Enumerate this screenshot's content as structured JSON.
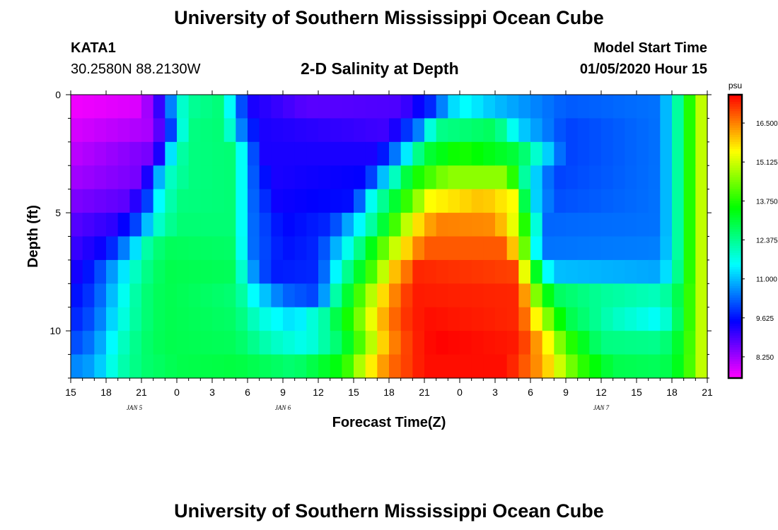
{
  "page": {
    "title_top": "University of Southern Mississippi Ocean Cube",
    "title_bottom": "University of Southern Mississippi Ocean Cube",
    "station_id": "KATA1",
    "station_coords": "30.2580N 88.2130W",
    "model_start_label": "Model Start Time",
    "model_start_value": "01/05/2020 Hour 15"
  },
  "chart_data": {
    "type": "heatmap",
    "title": "2-D Salinity at Depth",
    "xlabel": "Forecast Time(Z)",
    "ylabel": "Depth (ft)",
    "x_tick_labels": [
      "15",
      "18",
      "21",
      "0",
      "3",
      "6",
      "9",
      "12",
      "15",
      "18",
      "21",
      "0",
      "3",
      "6",
      "9",
      "12",
      "15",
      "18",
      "21"
    ],
    "x_day_labels": [
      {
        "label": "JAN 5",
        "hour": 9
      },
      {
        "label": "JAN 6",
        "hour": 30
      },
      {
        "label": "JAN 7",
        "hour": 75
      }
    ],
    "xlim_hours": [
      0,
      54
    ],
    "y_tick_labels": [
      {
        "label": "0",
        "depth": 0
      },
      {
        "label": "5",
        "depth": 5
      },
      {
        "label": "10",
        "depth": 10
      }
    ],
    "ylim_depth": [
      0,
      12
    ],
    "colorbar_unit": "psu",
    "colorbar_ticks": [
      "16.500",
      "15.125",
      "13.750",
      "12.375",
      "11.000",
      "9.625",
      "8.250"
    ],
    "colorbar_range": [
      7.5,
      17.5
    ],
    "depth_layers": [
      0.5,
      1.5,
      2.5,
      3.5,
      4.5,
      5.5,
      6.5,
      7.5,
      8.5,
      9.5,
      10.5,
      11.5
    ],
    "layer_profiles": [
      [
        [
          0,
          7.6
        ],
        [
          6,
          7.8
        ],
        [
          8,
          9.5
        ],
        [
          9,
          11.5
        ],
        [
          10,
          12.3
        ],
        [
          13,
          12.6
        ],
        [
          14,
          10.5
        ],
        [
          15.5,
          9.3
        ],
        [
          20,
          8.8
        ],
        [
          28,
          8.9
        ],
        [
          30.5,
          9.8
        ],
        [
          33,
          11.6
        ],
        [
          36,
          11.0
        ],
        [
          42,
          10.2
        ],
        [
          50,
          10.4
        ],
        [
          51,
          11.5
        ],
        [
          52,
          13.0
        ],
        [
          53,
          14.5
        ],
        [
          54,
          15.5
        ]
      ],
      [
        [
          0,
          7.8
        ],
        [
          7,
          8.2
        ],
        [
          8.5,
          10.0
        ],
        [
          9.5,
          11.8
        ],
        [
          10.5,
          12.5
        ],
        [
          13,
          12.6
        ],
        [
          14.5,
          10.5
        ],
        [
          16,
          9.3
        ],
        [
          27,
          9.0
        ],
        [
          29.5,
          10.5
        ],
        [
          31,
          12.4
        ],
        [
          36,
          12.8
        ],
        [
          38,
          11.2
        ],
        [
          42,
          10.0
        ],
        [
          50,
          10.4
        ],
        [
          51,
          11.5
        ],
        [
          52,
          13.0
        ],
        [
          53,
          14.5
        ],
        [
          54,
          15.5
        ]
      ],
      [
        [
          0,
          8.0
        ],
        [
          7,
          8.6
        ],
        [
          8,
          10.0
        ],
        [
          8.7,
          11.8
        ],
        [
          10,
          12.5
        ],
        [
          14,
          12.6
        ],
        [
          15,
          10.5
        ],
        [
          16.5,
          9.3
        ],
        [
          26,
          9.3
        ],
        [
          28,
          10.8
        ],
        [
          30,
          13.0
        ],
        [
          33,
          13.7
        ],
        [
          38,
          13.0
        ],
        [
          40,
          11.5
        ],
        [
          42,
          10.0
        ],
        [
          50,
          10.4
        ],
        [
          51,
          11.5
        ],
        [
          52,
          13.0
        ],
        [
          53,
          14.5
        ],
        [
          54,
          15.5
        ]
      ],
      [
        [
          0,
          8.2
        ],
        [
          6,
          8.6
        ],
        [
          7,
          10.0
        ],
        [
          8,
          11.8
        ],
        [
          10,
          12.5
        ],
        [
          14,
          12.6
        ],
        [
          15,
          10.5
        ],
        [
          17,
          9.3
        ],
        [
          25,
          9.5
        ],
        [
          27,
          11.5
        ],
        [
          29,
          13.5
        ],
        [
          32,
          14.6
        ],
        [
          37,
          14.6
        ],
        [
          38,
          13.0
        ],
        [
          39,
          11.5
        ],
        [
          41,
          10.0
        ],
        [
          50,
          10.4
        ],
        [
          51,
          11.5
        ],
        [
          52,
          13.0
        ],
        [
          53,
          14.5
        ],
        [
          54,
          15.5
        ]
      ],
      [
        [
          0,
          8.5
        ],
        [
          5,
          8.8
        ],
        [
          6.5,
          10.0
        ],
        [
          7.5,
          11.5
        ],
        [
          9,
          12.5
        ],
        [
          14,
          12.6
        ],
        [
          15,
          10.5
        ],
        [
          17.5,
          9.4
        ],
        [
          24,
          9.6
        ],
        [
          25.5,
          11.6
        ],
        [
          28,
          13.5
        ],
        [
          30.5,
          15.5
        ],
        [
          35,
          16.0
        ],
        [
          37.5,
          15.5
        ],
        [
          38.3,
          13.5
        ],
        [
          39,
          11.5
        ],
        [
          41,
          10.1
        ],
        [
          50,
          10.4
        ],
        [
          51,
          11.5
        ],
        [
          52,
          13.0
        ],
        [
          53,
          14.5
        ],
        [
          54,
          15.5
        ]
      ],
      [
        [
          0,
          8.8
        ],
        [
          4,
          9.2
        ],
        [
          6,
          10.3
        ],
        [
          7,
          11.7
        ],
        [
          9,
          12.6
        ],
        [
          14,
          12.6
        ],
        [
          15,
          10.5
        ],
        [
          18,
          9.5
        ],
        [
          22,
          9.8
        ],
        [
          25,
          11.8
        ],
        [
          27,
          13.5
        ],
        [
          29,
          15.5
        ],
        [
          31,
          16.5
        ],
        [
          36,
          16.4
        ],
        [
          38,
          15.0
        ],
        [
          39,
          12.5
        ],
        [
          40.5,
          10.3
        ],
        [
          50,
          10.4
        ],
        [
          51,
          11.5
        ],
        [
          52,
          13.0
        ],
        [
          53,
          14.5
        ],
        [
          54,
          15.5
        ]
      ],
      [
        [
          0,
          9.0
        ],
        [
          3,
          9.5
        ],
        [
          5,
          10.8
        ],
        [
          6.5,
          12.2
        ],
        [
          8,
          12.8
        ],
        [
          14,
          12.7
        ],
        [
          15,
          10.5
        ],
        [
          18,
          9.6
        ],
        [
          21,
          9.8
        ],
        [
          24,
          12.0
        ],
        [
          26,
          13.8
        ],
        [
          28,
          15.5
        ],
        [
          30,
          16.8
        ],
        [
          37,
          16.8
        ],
        [
          38.7,
          14.0
        ],
        [
          39.5,
          11.5
        ],
        [
          40.5,
          10.4
        ],
        [
          50,
          10.5
        ],
        [
          51,
          11.5
        ],
        [
          52,
          13.0
        ],
        [
          53,
          14.5
        ],
        [
          54,
          15.5
        ]
      ],
      [
        [
          0,
          9.2
        ],
        [
          2,
          9.8
        ],
        [
          4,
          11.0
        ],
        [
          6,
          12.3
        ],
        [
          8,
          12.9
        ],
        [
          14,
          12.8
        ],
        [
          15,
          11.0
        ],
        [
          17,
          9.7
        ],
        [
          21,
          9.8
        ],
        [
          23,
          12.0
        ],
        [
          25.5,
          14.0
        ],
        [
          27.5,
          16.0
        ],
        [
          29.5,
          17.2
        ],
        [
          37.5,
          17.0
        ],
        [
          39,
          14.5
        ],
        [
          40,
          12.0
        ],
        [
          41,
          11.0
        ],
        [
          50,
          10.8
        ],
        [
          51,
          11.7
        ],
        [
          52,
          13.1
        ],
        [
          53,
          14.5
        ],
        [
          54,
          15.5
        ]
      ],
      [
        [
          0,
          9.5
        ],
        [
          2,
          10.0
        ],
        [
          4,
          11.3
        ],
        [
          6,
          12.5
        ],
        [
          8,
          12.9
        ],
        [
          14,
          12.6
        ],
        [
          15.5,
          11.5
        ],
        [
          18,
          10.3
        ],
        [
          21,
          10.0
        ],
        [
          22.5,
          12.2
        ],
        [
          25,
          14.5
        ],
        [
          27,
          16.2
        ],
        [
          29,
          17.3
        ],
        [
          38,
          17.2
        ],
        [
          39.5,
          14.5
        ],
        [
          41,
          12.8
        ],
        [
          45,
          12.3
        ],
        [
          50,
          12.0
        ],
        [
          51,
          12.5
        ],
        [
          52,
          13.3
        ],
        [
          53,
          14.5
        ],
        [
          54,
          15.5
        ]
      ],
      [
        [
          0,
          9.7
        ],
        [
          2,
          10.2
        ],
        [
          4,
          11.5
        ],
        [
          6,
          12.5
        ],
        [
          8,
          12.9
        ],
        [
          14,
          12.7
        ],
        [
          16,
          11.8
        ],
        [
          19,
          11.2
        ],
        [
          21.5,
          12.2
        ],
        [
          24,
          14.0
        ],
        [
          26,
          15.8
        ],
        [
          28,
          17.0
        ],
        [
          30,
          17.4
        ],
        [
          38,
          17.2
        ],
        [
          40,
          15.0
        ],
        [
          42,
          13.0
        ],
        [
          46,
          12.0
        ],
        [
          50,
          11.5
        ],
        [
          51,
          12.2
        ],
        [
          52,
          13.3
        ],
        [
          53,
          14.5
        ],
        [
          54,
          15.5
        ]
      ],
      [
        [
          0,
          10.0
        ],
        [
          2,
          10.5
        ],
        [
          4,
          11.8
        ],
        [
          6,
          12.6
        ],
        [
          8,
          12.9
        ],
        [
          14,
          12.8
        ],
        [
          17,
          12.0
        ],
        [
          20,
          11.6
        ],
        [
          23,
          12.8
        ],
        [
          25,
          14.5
        ],
        [
          27,
          16.3
        ],
        [
          29,
          17.2
        ],
        [
          31,
          17.5
        ],
        [
          38,
          17.3
        ],
        [
          40,
          16.0
        ],
        [
          42,
          14.0
        ],
        [
          45,
          12.5
        ],
        [
          50,
          12.4
        ],
        [
          51,
          12.8
        ],
        [
          52,
          13.5
        ],
        [
          53,
          14.5
        ],
        [
          54,
          15.5
        ]
      ],
      [
        [
          0,
          10.5
        ],
        [
          2,
          10.8
        ],
        [
          4,
          12.0
        ],
        [
          6,
          12.6
        ],
        [
          9,
          12.9
        ],
        [
          14,
          13.0
        ],
        [
          19,
          12.6
        ],
        [
          23,
          13.5
        ],
        [
          25,
          15.3
        ],
        [
          27,
          16.6
        ],
        [
          30,
          17.4
        ],
        [
          37,
          17.4
        ],
        [
          40,
          16.2
        ],
        [
          43,
          14.0
        ],
        [
          46,
          12.9
        ],
        [
          50,
          12.8
        ],
        [
          51,
          13.0
        ],
        [
          52,
          13.6
        ],
        [
          53,
          14.5
        ],
        [
          54,
          15.5
        ]
      ]
    ]
  }
}
